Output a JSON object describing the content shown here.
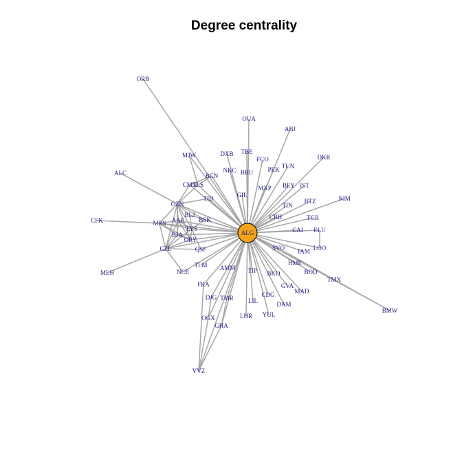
{
  "title": "Degree centrality",
  "colors": {
    "edge": "#a6a6a6",
    "hub_fill": "#f5a31a",
    "hub_stroke": "#000000",
    "label": "#1a1a80"
  },
  "graph": {
    "hub": "ALG",
    "nodes": [
      "ORB",
      "OUA",
      "ABJ",
      "MJW",
      "DXB",
      "TBE",
      "FCO",
      "DKR",
      "TUN",
      "ALC",
      "NKC",
      "BRU",
      "PEK",
      "BCN",
      "CMN",
      "TLS",
      "MXP",
      "BEY",
      "IST",
      "NIM",
      "TID",
      "GIL",
      "OZN",
      "BLJ",
      "TIN",
      "BTZ",
      "CFK",
      "BSK",
      "MRS",
      "AAE",
      "CBH",
      "TGR",
      "LYS",
      "CAI",
      "ELU",
      "BJA",
      "ORY",
      "QSF",
      "CZL",
      "SVO",
      "IAM",
      "LOO",
      "TLM",
      "HME",
      "AMM",
      "NCE",
      "TIP",
      "BOD",
      "BKO",
      "TMX",
      "FRA",
      "GVA",
      "MAD",
      "DJG",
      "TMR",
      "LIL",
      "CDG",
      "DAM",
      "MLH",
      "LHR",
      "YUL",
      "OGX",
      "GHA",
      "BMW",
      "VVZ"
    ],
    "edges": [
      [
        "ALG",
        "ORB"
      ],
      [
        "ALG",
        "OUA"
      ],
      [
        "ALG",
        "ABJ"
      ],
      [
        "ALG",
        "MJW"
      ],
      [
        "ALG",
        "DXB"
      ],
      [
        "ALG",
        "TBE"
      ],
      [
        "ALG",
        "FCO"
      ],
      [
        "ALG",
        "DKR"
      ],
      [
        "ALG",
        "TUN"
      ],
      [
        "ALG",
        "NKC"
      ],
      [
        "ALG",
        "BRU"
      ],
      [
        "ALG",
        "PEK"
      ],
      [
        "ALG",
        "BCN"
      ],
      [
        "ALG",
        "CMN"
      ],
      [
        "ALG",
        "TLS"
      ],
      [
        "ALG",
        "MXP"
      ],
      [
        "ALG",
        "BEY"
      ],
      [
        "ALG",
        "IST"
      ],
      [
        "ALG",
        "NIM"
      ],
      [
        "ALG",
        "TID"
      ],
      [
        "ALG",
        "GIL"
      ],
      [
        "ALG",
        "OZN"
      ],
      [
        "ALG",
        "BLJ"
      ],
      [
        "ALG",
        "TIN"
      ],
      [
        "ALG",
        "BTZ"
      ],
      [
        "ALG",
        "BSK"
      ],
      [
        "ALG",
        "MRS"
      ],
      [
        "ALG",
        "AAE"
      ],
      [
        "ALG",
        "CBH"
      ],
      [
        "ALG",
        "TGR"
      ],
      [
        "ALG",
        "LYS"
      ],
      [
        "ALG",
        "CAI"
      ],
      [
        "ALG",
        "ELU"
      ],
      [
        "ALG",
        "BJA"
      ],
      [
        "ALG",
        "ORY"
      ],
      [
        "ALG",
        "QSF"
      ],
      [
        "ALG",
        "CZL"
      ],
      [
        "ALG",
        "SVO"
      ],
      [
        "ALG",
        "IAM"
      ],
      [
        "ALG",
        "LOO"
      ],
      [
        "ALG",
        "TLM"
      ],
      [
        "ALG",
        "HME"
      ],
      [
        "ALG",
        "AMM"
      ],
      [
        "ALG",
        "NCE"
      ],
      [
        "ALG",
        "TIP"
      ],
      [
        "ALG",
        "BOD"
      ],
      [
        "ALG",
        "BKO"
      ],
      [
        "ALG",
        "TMX"
      ],
      [
        "ALG",
        "FRA"
      ],
      [
        "ALG",
        "GVA"
      ],
      [
        "ALG",
        "MAD"
      ],
      [
        "ALG",
        "DJG"
      ],
      [
        "ALG",
        "TMR"
      ],
      [
        "ALG",
        "LIL"
      ],
      [
        "ALG",
        "CDG"
      ],
      [
        "ALG",
        "DAM"
      ],
      [
        "ALG",
        "LHR"
      ],
      [
        "ALG",
        "YUL"
      ],
      [
        "ALG",
        "OGX"
      ],
      [
        "ALG",
        "GHA"
      ],
      [
        "ALG",
        "BMW"
      ],
      [
        "ALG",
        "VVZ"
      ],
      [
        "OZN",
        "ALC"
      ],
      [
        "OZN",
        "MRS"
      ],
      [
        "OZN",
        "CMN"
      ],
      [
        "OZN",
        "TLS"
      ],
      [
        "OZN",
        "AAE"
      ],
      [
        "OZN",
        "BJA"
      ],
      [
        "OZN",
        "CZL"
      ],
      [
        "OZN",
        "TID"
      ],
      [
        "OZN",
        "BLJ"
      ],
      [
        "OZN",
        "LYS"
      ],
      [
        "OZN",
        "BSK"
      ],
      [
        "OZN",
        "ORY"
      ],
      [
        "MRS",
        "CFK"
      ],
      [
        "MRS",
        "AAE"
      ],
      [
        "MRS",
        "BJA"
      ],
      [
        "MRS",
        "CZL"
      ],
      [
        "MRS",
        "LYS"
      ],
      [
        "MRS",
        "ORY"
      ],
      [
        "CZL",
        "MLH"
      ],
      [
        "CZL",
        "AAE"
      ],
      [
        "CZL",
        "BJA"
      ],
      [
        "CZL",
        "QSF"
      ],
      [
        "CZL",
        "LYS"
      ],
      [
        "CZL",
        "ORY"
      ],
      [
        "CZL",
        "NCE"
      ],
      [
        "AAE",
        "BJA"
      ],
      [
        "AAE",
        "LYS"
      ],
      [
        "AAE",
        "ORY"
      ],
      [
        "BJA",
        "ORY"
      ],
      [
        "LYS",
        "ORY"
      ],
      [
        "LYS",
        "QSF"
      ],
      [
        "BLJ",
        "LYS"
      ],
      [
        "BSK",
        "LYS"
      ],
      [
        "CMN",
        "BCN"
      ],
      [
        "TLS",
        "MJW"
      ],
      [
        "TLS",
        "BCN"
      ],
      [
        "VVZ",
        "OGX"
      ],
      [
        "VVZ",
        "GHA"
      ],
      [
        "VVZ",
        "FRA"
      ],
      [
        "OGX",
        "DJG"
      ],
      [
        "GHA",
        "TMR"
      ],
      [
        "TMX",
        "BMW"
      ],
      [
        "SVO",
        "TMX"
      ],
      [
        "ELU",
        "LOO"
      ]
    ]
  }
}
